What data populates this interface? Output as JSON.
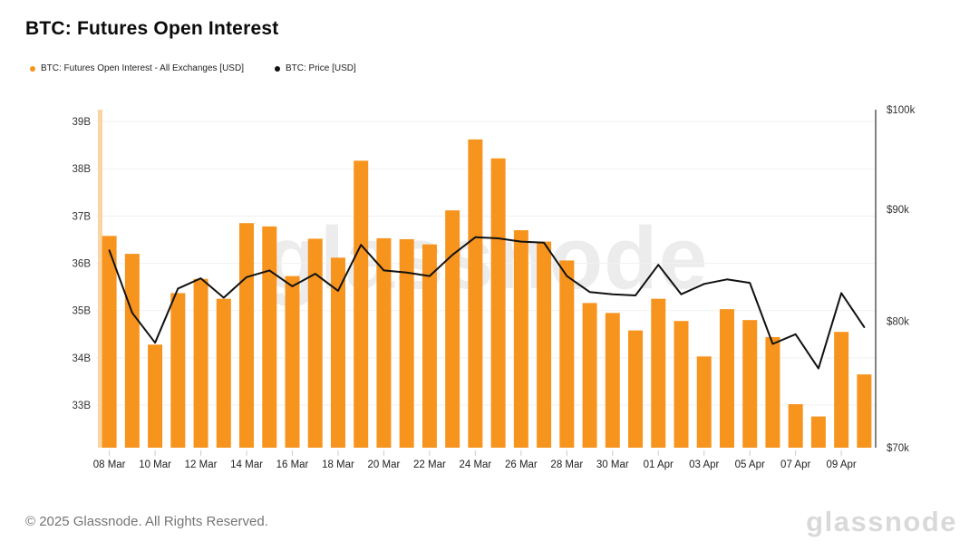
{
  "header": {
    "title": "BTC: Futures Open Interest"
  },
  "legend": [
    {
      "label": "BTC: Futures Open Interest - All Exchanges [USD]",
      "color": "#F7941E"
    },
    {
      "label": "BTC: Price [USD]",
      "color": "#111111"
    }
  ],
  "watermark": "glassnode",
  "footer": {
    "copyright": "© 2025 Glassnode. All Rights Reserved.",
    "brand": "glassnode"
  },
  "colors": {
    "bar": "#F7941E",
    "bar_clipped": "#FAD4A2",
    "line": "#111111",
    "grid": "#F1F1EF",
    "right_axis_line": "#58595B",
    "axis_text": "#333333",
    "x_tick_mark": "#CCCCCC"
  },
  "chart_data": {
    "type": "bar",
    "title": "BTC: Futures Open Interest",
    "categories": [
      "08 Mar",
      "09 Mar",
      "10 Mar",
      "11 Mar",
      "12 Mar",
      "13 Mar",
      "14 Mar",
      "15 Mar",
      "16 Mar",
      "17 Mar",
      "18 Mar",
      "19 Mar",
      "20 Mar",
      "21 Mar",
      "22 Mar",
      "23 Mar",
      "24 Mar",
      "25 Mar",
      "26 Mar",
      "27 Mar",
      "28 Mar",
      "29 Mar",
      "30 Mar",
      "31 Mar",
      "01 Apr",
      "02 Apr",
      "03 Apr",
      "04 Apr",
      "05 Apr",
      "06 Apr",
      "07 Apr",
      "08 Apr",
      "09 Apr",
      "10 Apr"
    ],
    "series": [
      {
        "name": "BTC: Futures Open Interest - All Exchanges [USD]",
        "type": "bar",
        "axis": "left",
        "unit": "billions USD",
        "color": "#F7941E",
        "values": [
          36.58,
          36.2,
          34.28,
          35.37,
          35.67,
          35.25,
          36.85,
          36.78,
          35.73,
          36.52,
          36.12,
          38.17,
          36.53,
          36.51,
          36.4,
          37.12,
          38.62,
          38.22,
          36.7,
          36.46,
          36.06,
          35.16,
          34.95,
          34.58,
          35.25,
          34.78,
          34.03,
          35.03,
          34.8,
          34.44,
          33.02,
          32.76,
          34.55,
          33.65
        ]
      },
      {
        "name": "BTC: Price [USD]",
        "type": "line",
        "axis": "right",
        "unit": "thousands USD",
        "color": "#111111",
        "values": [
          86.2,
          80.7,
          78.2,
          82.8,
          83.7,
          82.0,
          83.8,
          84.4,
          83.0,
          84.1,
          82.6,
          86.7,
          84.4,
          84.2,
          83.9,
          85.8,
          87.4,
          87.3,
          87.0,
          86.9,
          83.9,
          82.5,
          82.3,
          82.2,
          84.9,
          82.3,
          83.2,
          83.6,
          83.3,
          78.1,
          78.9,
          76.1,
          82.4,
          79.5
        ]
      }
    ],
    "partial_first_bar": {
      "date": "07 Mar",
      "clipped_above_range": true
    },
    "left_axis": {
      "ticks": [
        "39B",
        "38B",
        "37B",
        "36B",
        "35B",
        "34B",
        "33B"
      ],
      "tick_values": [
        39,
        38,
        37,
        36,
        35,
        34,
        33
      ],
      "range": [
        32.1,
        39.25
      ],
      "scale": "linear"
    },
    "right_axis": {
      "ticks": [
        "$100k",
        "$90k",
        "$80k",
        "$70k"
      ],
      "tick_values": [
        100,
        90,
        80,
        70
      ],
      "range": [
        70,
        100
      ],
      "scale": "log"
    },
    "x_axis": {
      "tick_labels": [
        "08 Mar",
        "10 Mar",
        "12 Mar",
        "14 Mar",
        "16 Mar",
        "18 Mar",
        "20 Mar",
        "22 Mar",
        "24 Mar",
        "26 Mar",
        "28 Mar",
        "30 Mar",
        "01 Apr",
        "03 Apr",
        "05 Apr",
        "07 Apr",
        "09 Apr"
      ],
      "tick_every": 2
    },
    "grid": "horizontal",
    "legend_position": "top-left"
  }
}
